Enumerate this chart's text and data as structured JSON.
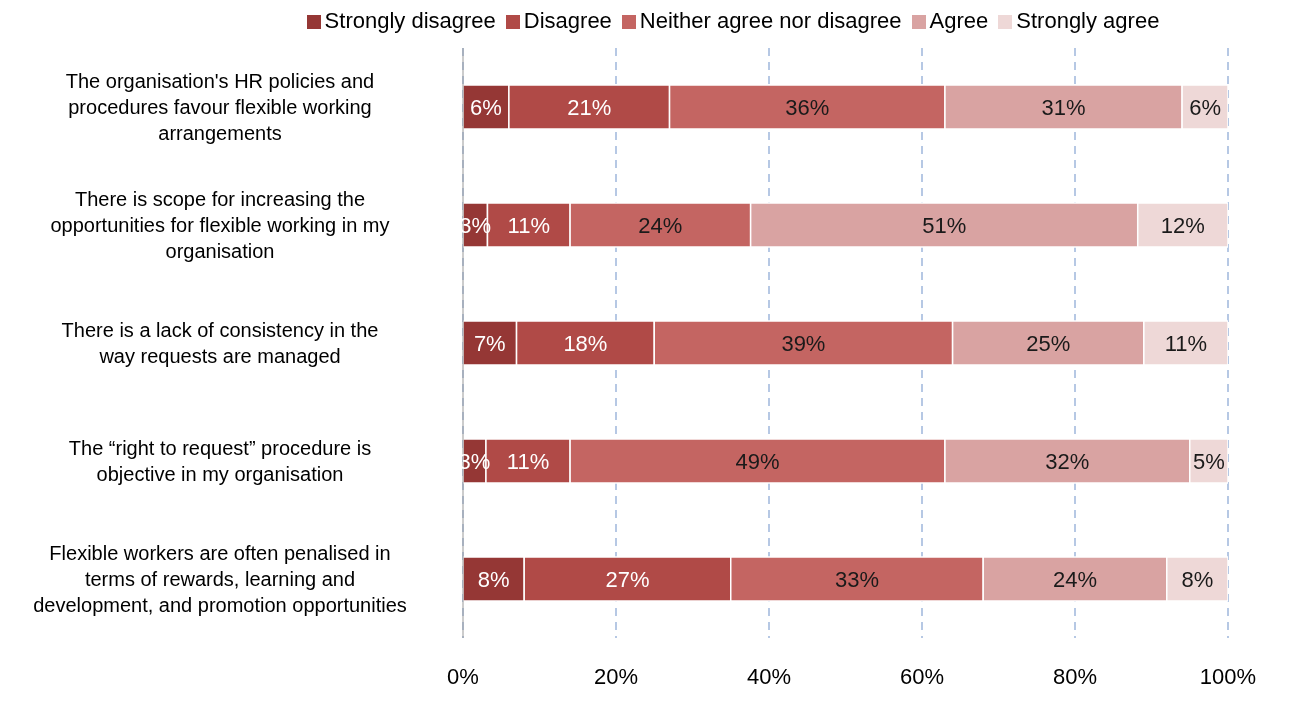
{
  "chart_data": {
    "type": "bar",
    "orientation": "horizontal",
    "stacked": true,
    "categories": [
      "The organisation's HR policies and procedures favour flexible working arrangements",
      "There is scope for increasing the opportunities for flexible working in my organisation",
      "There is a lack of consistency in the way requests are managed",
      "The “right to request” procedure is objective in my organisation",
      "Flexible workers are often penalised in terms of rewards, learning and development, and promotion opportunities"
    ],
    "series": [
      {
        "name": "Strongly disagree",
        "color": "#953735",
        "values": [
          6,
          3.2,
          7,
          3,
          8
        ],
        "value_labels": [
          "6%",
          "3%",
          "7%",
          "3%",
          "8%"
        ]
      },
      {
        "name": "Disagree",
        "color": "#b04a47",
        "values": [
          21,
          10.8,
          18,
          11,
          27
        ],
        "value_labels": [
          "21%",
          "11%",
          "18%",
          "11%",
          "27%"
        ]
      },
      {
        "name": "Neither agree nor disagree",
        "color": "#c46562",
        "values": [
          36,
          23.6,
          39,
          49,
          33
        ],
        "value_labels": [
          "36%",
          "24%",
          "39%",
          "49%",
          "33%"
        ]
      },
      {
        "name": "Agree",
        "color": "#d9a3a2",
        "values": [
          31,
          50.6,
          25,
          32,
          24
        ],
        "value_labels": [
          "31%",
          "51%",
          "25%",
          "32%",
          "24%"
        ]
      },
      {
        "name": "Strongly agree",
        "color": "#eed8d7",
        "values": [
          6,
          11.8,
          11,
          5,
          8
        ],
        "value_labels": [
          "6%",
          "12%",
          "11%",
          "5%",
          "8%"
        ]
      }
    ],
    "xlim": [
      0,
      100
    ],
    "xticks": [
      {
        "value": 0,
        "label": "0%"
      },
      {
        "value": 20,
        "label": "20%"
      },
      {
        "value": 40,
        "label": "40%"
      },
      {
        "value": 60,
        "label": "60%"
      },
      {
        "value": 80,
        "label": "80%"
      },
      {
        "value": 100,
        "label": "100%"
      }
    ],
    "grid": "x",
    "legend": "top"
  }
}
